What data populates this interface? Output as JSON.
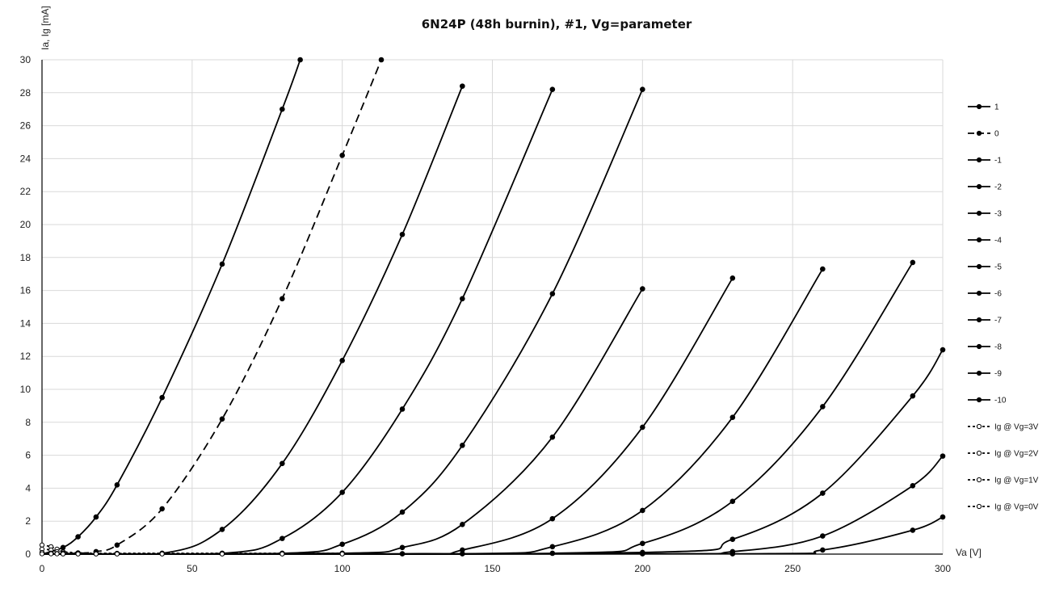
{
  "chart_data": {
    "type": "line",
    "title": "6N24P (48h burnin), #1, Vg=parameter",
    "xlabel": "Va [V]",
    "ylabel": "Ia, Ig [mA]",
    "xlim": [
      0,
      300
    ],
    "ylim": [
      0,
      30
    ],
    "x_ticks": [
      0,
      50,
      100,
      150,
      200,
      250,
      300
    ],
    "y_ticks": [
      0,
      2,
      4,
      6,
      8,
      10,
      12,
      14,
      16,
      18,
      20,
      22,
      24,
      26,
      28,
      30
    ],
    "grid": true,
    "legend_position": "right",
    "series": [
      {
        "name": "1",
        "dash": "solid",
        "marker": "filled",
        "points": [
          [
            0,
            0
          ],
          [
            7,
            0.4
          ],
          [
            12,
            1.05
          ],
          [
            18,
            2.25
          ],
          [
            25,
            4.2
          ],
          [
            40,
            9.5
          ],
          [
            60,
            17.6
          ],
          [
            80,
            27
          ],
          [
            86,
            30
          ]
        ]
      },
      {
        "name": "0",
        "dash": "dashed",
        "marker": "filled",
        "points": [
          [
            0,
            0
          ],
          [
            12,
            0.05
          ],
          [
            18,
            0.15
          ],
          [
            25,
            0.55
          ],
          [
            40,
            2.75
          ],
          [
            60,
            8.2
          ],
          [
            80,
            15.5
          ],
          [
            100,
            24.2
          ],
          [
            113,
            30
          ]
        ]
      },
      {
        "name": "-1",
        "dash": "solid",
        "marker": "filled",
        "points": [
          [
            0,
            0
          ],
          [
            40,
            0.05
          ],
          [
            60,
            1.5
          ],
          [
            80,
            5.5
          ],
          [
            100,
            11.75
          ],
          [
            120,
            19.4
          ],
          [
            140,
            28.4
          ]
        ]
      },
      {
        "name": "-2",
        "dash": "solid",
        "marker": "filled",
        "points": [
          [
            0,
            0
          ],
          [
            60,
            0.05
          ],
          [
            80,
            0.95
          ],
          [
            100,
            3.75
          ],
          [
            120,
            8.8
          ],
          [
            140,
            15.5
          ],
          [
            170,
            28.2
          ]
        ]
      },
      {
        "name": "-3",
        "dash": "solid",
        "marker": "filled",
        "points": [
          [
            0,
            0
          ],
          [
            80,
            0.05
          ],
          [
            100,
            0.6
          ],
          [
            120,
            2.55
          ],
          [
            140,
            6.6
          ],
          [
            170,
            15.8
          ],
          [
            200,
            28.2
          ]
        ]
      },
      {
        "name": "-4",
        "dash": "solid",
        "marker": "filled",
        "points": [
          [
            0,
            0
          ],
          [
            100,
            0.05
          ],
          [
            120,
            0.4
          ],
          [
            140,
            1.8
          ],
          [
            170,
            7.1
          ],
          [
            200,
            16.1
          ]
        ]
      },
      {
        "name": "-5",
        "dash": "solid",
        "marker": "filled",
        "points": [
          [
            0,
            0
          ],
          [
            120,
            0.02
          ],
          [
            140,
            0.25
          ],
          [
            170,
            2.15
          ],
          [
            200,
            7.7
          ],
          [
            230,
            16.75
          ]
        ]
      },
      {
        "name": "-6",
        "dash": "solid",
        "marker": "filled",
        "points": [
          [
            0,
            0
          ],
          [
            140,
            0.02
          ],
          [
            170,
            0.45
          ],
          [
            200,
            2.65
          ],
          [
            230,
            8.3
          ],
          [
            260,
            17.3
          ]
        ]
      },
      {
        "name": "-7",
        "dash": "solid",
        "marker": "filled",
        "points": [
          [
            0,
            0
          ],
          [
            170,
            0.05
          ],
          [
            200,
            0.65
          ],
          [
            230,
            3.2
          ],
          [
            260,
            8.95
          ],
          [
            290,
            17.7
          ]
        ]
      },
      {
        "name": "-8",
        "dash": "solid",
        "marker": "filled",
        "points": [
          [
            0,
            0
          ],
          [
            200,
            0.1
          ],
          [
            230,
            0.9
          ],
          [
            260,
            3.7
          ],
          [
            290,
            9.6
          ],
          [
            300,
            12.4
          ]
        ]
      },
      {
        "name": "-9",
        "dash": "solid",
        "marker": "filled",
        "points": [
          [
            0,
            0
          ],
          [
            200,
            0.02
          ],
          [
            230,
            0.15
          ],
          [
            260,
            1.1
          ],
          [
            290,
            4.15
          ],
          [
            300,
            5.95
          ]
        ]
      },
      {
        "name": "-10",
        "dash": "solid",
        "marker": "filled",
        "points": [
          [
            0,
            0
          ],
          [
            230,
            0.02
          ],
          [
            260,
            0.25
          ],
          [
            290,
            1.45
          ],
          [
            300,
            2.25
          ]
        ]
      },
      {
        "name": "Ig @ Vg=3V",
        "dash": "dashed",
        "marker": "open",
        "points": [
          [
            0,
            0.55
          ],
          [
            3,
            0.45
          ],
          [
            5,
            0.3
          ],
          [
            7,
            0.15
          ],
          [
            12,
            0.08
          ],
          [
            18,
            0.05
          ],
          [
            25,
            0.05
          ],
          [
            40,
            0.05
          ],
          [
            60,
            0.05
          ],
          [
            80,
            0.05
          ],
          [
            100,
            0.05
          ]
        ]
      },
      {
        "name": "Ig @ Vg=2V",
        "dash": "dashed",
        "marker": "open",
        "points": [
          [
            0,
            0.3
          ],
          [
            3,
            0.25
          ],
          [
            5,
            0.15
          ],
          [
            7,
            0.08
          ],
          [
            12,
            0.05
          ],
          [
            18,
            0.03
          ],
          [
            25,
            0.03
          ],
          [
            40,
            0.03
          ],
          [
            60,
            0.03
          ],
          [
            80,
            0.03
          ],
          [
            100,
            0.03
          ]
        ]
      },
      {
        "name": "Ig @ Vg=1V",
        "dash": "dashed",
        "marker": "open",
        "points": [
          [
            0,
            0.1
          ],
          [
            3,
            0.06
          ],
          [
            5,
            0.04
          ],
          [
            7,
            0.03
          ],
          [
            12,
            0.02
          ],
          [
            18,
            0.02
          ],
          [
            25,
            0.02
          ],
          [
            40,
            0.02
          ],
          [
            60,
            0.02
          ],
          [
            80,
            0.02
          ],
          [
            100,
            0.02
          ]
        ]
      },
      {
        "name": "Ig @ Vg=0V",
        "dash": "dashed",
        "marker": "open",
        "points": [
          [
            0,
            0.02
          ],
          [
            3,
            0.02
          ],
          [
            5,
            0.02
          ],
          [
            7,
            0.01
          ],
          [
            12,
            0.01
          ],
          [
            18,
            0.01
          ],
          [
            25,
            0.01
          ],
          [
            40,
            0.01
          ],
          [
            60,
            0.01
          ],
          [
            80,
            0.01
          ],
          [
            100,
            0.01
          ]
        ]
      }
    ]
  }
}
